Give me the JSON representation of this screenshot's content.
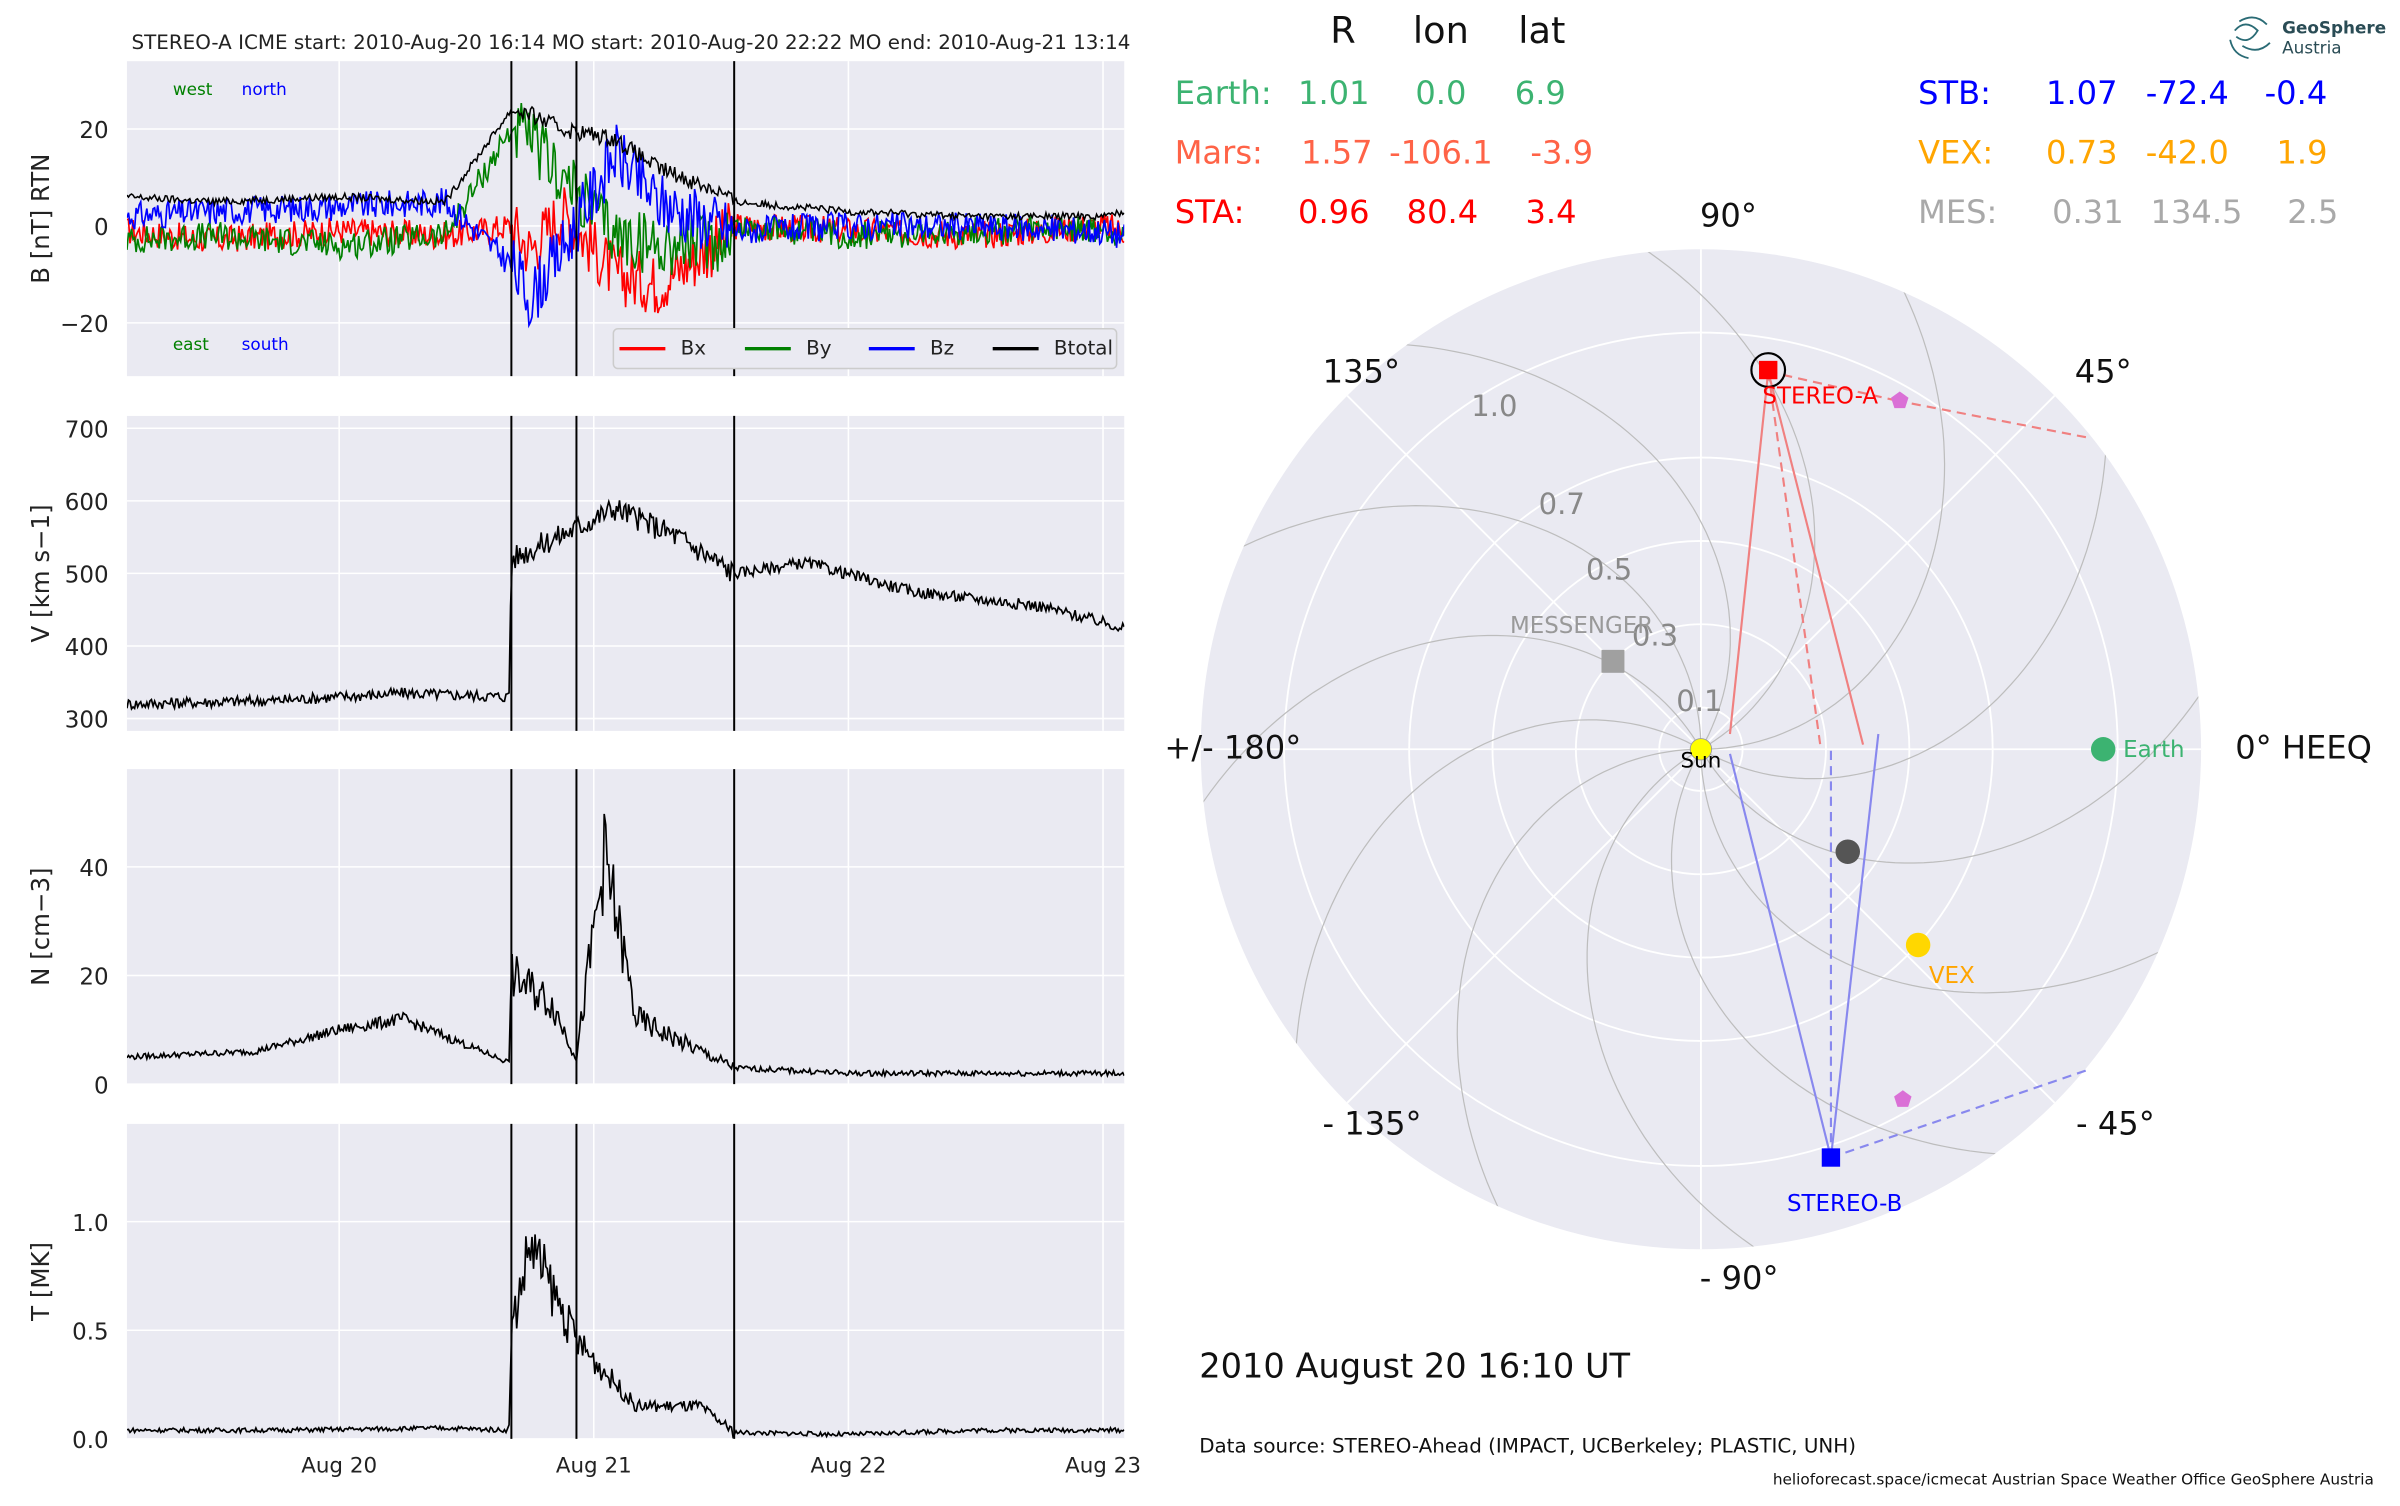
{
  "header": {
    "event_line": "STEREO-A    ICME start: 2010-Aug-20 16:14    MO start: 2010-Aug-20 22:22    MO end: 2010-Aug-21 13:14"
  },
  "position_table": {
    "columns": [
      "R",
      "lon",
      "lat"
    ],
    "left_rows": [
      {
        "label": "Earth:",
        "r": "1.01",
        "lon": "0.0",
        "lat": "6.9",
        "color": "#3cb371"
      },
      {
        "label": "Mars:",
        "r": "1.57",
        "lon": "-106.1",
        "lat": "-3.9",
        "color": "#ff6347"
      },
      {
        "label": "STA:",
        "r": "0.96",
        "lon": "80.4",
        "lat": "3.4",
        "color": "#ff0000"
      }
    ],
    "right_rows": [
      {
        "label": "STB:",
        "r": "1.07",
        "lon": "-72.4",
        "lat": "-0.4",
        "color": "#0000ff"
      },
      {
        "label": "VEX:",
        "r": "0.73",
        "lon": "-42.0",
        "lat": "1.9",
        "color": "#ffa500"
      },
      {
        "label": "MES:",
        "r": "0.31",
        "lon": "134.5",
        "lat": "2.5",
        "color": "#a9a9a9"
      }
    ]
  },
  "logo": {
    "line1": "GeoSphere",
    "line2": "Austria"
  },
  "polar": {
    "angle_labels": {
      "a90": "90°",
      "a45": "45°",
      "a135": "135°",
      "a180": "+/- 180°",
      "a0": "0° HEEQ",
      "am45": "- 45°",
      "am90": "- 90°",
      "am135": "- 135°"
    },
    "r_labels": [
      "1.0",
      "0.7",
      "0.5",
      "0.3",
      "0.1"
    ],
    "objects": {
      "sun": "Sun",
      "earth": "Earth",
      "vex": "VEX",
      "stereo_a": "STEREO-A",
      "stereo_b": "STEREO-B",
      "messenger": "MESSENGER"
    },
    "colors": {
      "earth": "#3cb371",
      "vex": "#ffd700",
      "stereo_a": "#ff0000",
      "stereo_b": "#0000ff",
      "messenger": "#a0a0a0",
      "sun": "#ffff00",
      "mars_marker": "#555555",
      "pentagon": "#da70d6"
    }
  },
  "timestamp": "2010 August 20  16:10 UT",
  "data_source": "Data source: STEREO-Ahead (IMPACT, UCBerkeley; PLASTIC, UNH)",
  "footer": "helioforecast.space/icmecat   Austrian Space Weather Office   GeoSphere Austria",
  "chart_data": [
    {
      "type": "line",
      "ylabel": "B [nT] RTN",
      "ylim": [
        -31,
        34
      ],
      "yticks": [
        "20",
        "0",
        "−20"
      ],
      "corner_labels": {
        "west": "west",
        "north": "north",
        "east": "east",
        "south": "south"
      },
      "series": [
        {
          "name": "Bx",
          "color": "#ff0000",
          "x": [
            "2010-08-19 04:00",
            "2010-08-19 12:00",
            "2010-08-20 00:00",
            "2010-08-20 10:00",
            "2010-08-20 16:14",
            "2010-08-20 18:00",
            "2010-08-20 21:00",
            "2010-08-21 02:00",
            "2010-08-21 06:00",
            "2010-08-21 12:00",
            "2010-08-21 13:14",
            "2010-08-22 00:00",
            "2010-08-22 12:00",
            "2010-08-23 00:00",
            "2010-08-23 02:00"
          ],
          "y": [
            -1,
            -3,
            -1,
            -2,
            0,
            -5,
            3,
            -10,
            -12,
            -3,
            0,
            -1,
            -2,
            0,
            -1
          ]
        },
        {
          "name": "By",
          "color": "#008000",
          "x": [
            "2010-08-19 04:00",
            "2010-08-19 12:00",
            "2010-08-20 00:00",
            "2010-08-20 10:00",
            "2010-08-20 16:14",
            "2010-08-20 18:00",
            "2010-08-20 21:00",
            "2010-08-21 02:00",
            "2010-08-21 06:00",
            "2010-08-21 12:00",
            "2010-08-21 13:14",
            "2010-08-22 00:00",
            "2010-08-22 12:00",
            "2010-08-23 00:00",
            "2010-08-23 02:00"
          ],
          "y": [
            -3,
            -2,
            -4,
            -2,
            20,
            18,
            10,
            -2,
            -4,
            -3,
            0,
            -2,
            -1,
            -1,
            -2
          ]
        },
        {
          "name": "Bz",
          "color": "#0000ff",
          "x": [
            "2010-08-19 04:00",
            "2010-08-19 12:00",
            "2010-08-20 00:00",
            "2010-08-20 10:00",
            "2010-08-20 16:14",
            "2010-08-20 18:00",
            "2010-08-20 21:00",
            "2010-08-21 02:00",
            "2010-08-21 06:00",
            "2010-08-21 12:00",
            "2010-08-21 13:14",
            "2010-08-22 00:00",
            "2010-08-22 12:00",
            "2010-08-23 00:00",
            "2010-08-23 02:00"
          ],
          "y": [
            2,
            3,
            4,
            5,
            -8,
            -15,
            -5,
            15,
            5,
            0,
            -1,
            0,
            0,
            -1,
            -2
          ]
        },
        {
          "name": "Btotal",
          "color": "#000000",
          "x": [
            "2010-08-19 04:00",
            "2010-08-19 12:00",
            "2010-08-20 00:00",
            "2010-08-20 10:00",
            "2010-08-20 16:14",
            "2010-08-20 18:00",
            "2010-08-20 21:00",
            "2010-08-21 02:00",
            "2010-08-21 06:00",
            "2010-08-21 12:00",
            "2010-08-21 13:14",
            "2010-08-22 00:00",
            "2010-08-22 12:00",
            "2010-08-23 00:00",
            "2010-08-23 02:00"
          ],
          "y": [
            6,
            5,
            6,
            5,
            24,
            23,
            20,
            18,
            12,
            7,
            5,
            3,
            2,
            2,
            3
          ]
        }
      ]
    },
    {
      "type": "line",
      "ylabel": "V [km s−1]",
      "ylim": [
        283,
        717
      ],
      "yticks": [
        "700",
        "600",
        "500",
        "400",
        "300"
      ],
      "series": [
        {
          "name": "V",
          "color": "#000000",
          "x": [
            "2010-08-19 04:00",
            "2010-08-19 18:00",
            "2010-08-20 06:00",
            "2010-08-20 16:00",
            "2010-08-20 16:14",
            "2010-08-20 22:00",
            "2010-08-21 02:00",
            "2010-08-21 08:00",
            "2010-08-21 13:14",
            "2010-08-21 20:00",
            "2010-08-22 06:00",
            "2010-08-22 18:00",
            "2010-08-23 02:00"
          ],
          "y": [
            320,
            325,
            335,
            330,
            520,
            560,
            590,
            550,
            500,
            515,
            475,
            455,
            425
          ]
        }
      ]
    },
    {
      "type": "line",
      "ylabel": "N [cm−3]",
      "ylim": [
        0,
        58
      ],
      "yticks": [
        "40",
        "20",
        "0"
      ],
      "series": [
        {
          "name": "N",
          "color": "#000000",
          "x": [
            "2010-08-19 04:00",
            "2010-08-19 16:00",
            "2010-08-20 00:00",
            "2010-08-20 06:00",
            "2010-08-20 16:00",
            "2010-08-20 16:14",
            "2010-08-20 20:00",
            "2010-08-20 22:22",
            "2010-08-21 01:00",
            "2010-08-21 04:00",
            "2010-08-21 08:00",
            "2010-08-21 13:14",
            "2010-08-22 00:00",
            "2010-08-22 12:00",
            "2010-08-23 02:00"
          ],
          "y": [
            5,
            6,
            10,
            12,
            4,
            20,
            15,
            5,
            42,
            12,
            8,
            3,
            2,
            2,
            2
          ]
        }
      ]
    },
    {
      "type": "line",
      "ylabel": "T [MK]",
      "ylim": [
        0,
        1.45
      ],
      "yticks": [
        "1.0",
        "0.5",
        "0.0"
      ],
      "series": [
        {
          "name": "T",
          "color": "#000000",
          "x": [
            "2010-08-19 04:00",
            "2010-08-19 18:00",
            "2010-08-20 10:00",
            "2010-08-20 16:00",
            "2010-08-20 16:14",
            "2010-08-20 18:00",
            "2010-08-20 22:22",
            "2010-08-21 04:00",
            "2010-08-21 10:00",
            "2010-08-21 13:14",
            "2010-08-22 00:00",
            "2010-08-22 12:00",
            "2010-08-23 02:00"
          ],
          "y": [
            0.04,
            0.04,
            0.05,
            0.04,
            0.5,
            0.9,
            0.45,
            0.15,
            0.15,
            0.03,
            0.02,
            0.04,
            0.04
          ]
        }
      ]
    }
  ],
  "x_axis": {
    "ticks": [
      "Aug 20",
      "Aug 21",
      "Aug 22",
      "Aug 23"
    ],
    "range": [
      "2010-08-19 04:00",
      "2010-08-23 02:00"
    ]
  },
  "event_lines": [
    "2010-08-20 16:14",
    "2010-08-20 22:22",
    "2010-08-21 13:14"
  ]
}
